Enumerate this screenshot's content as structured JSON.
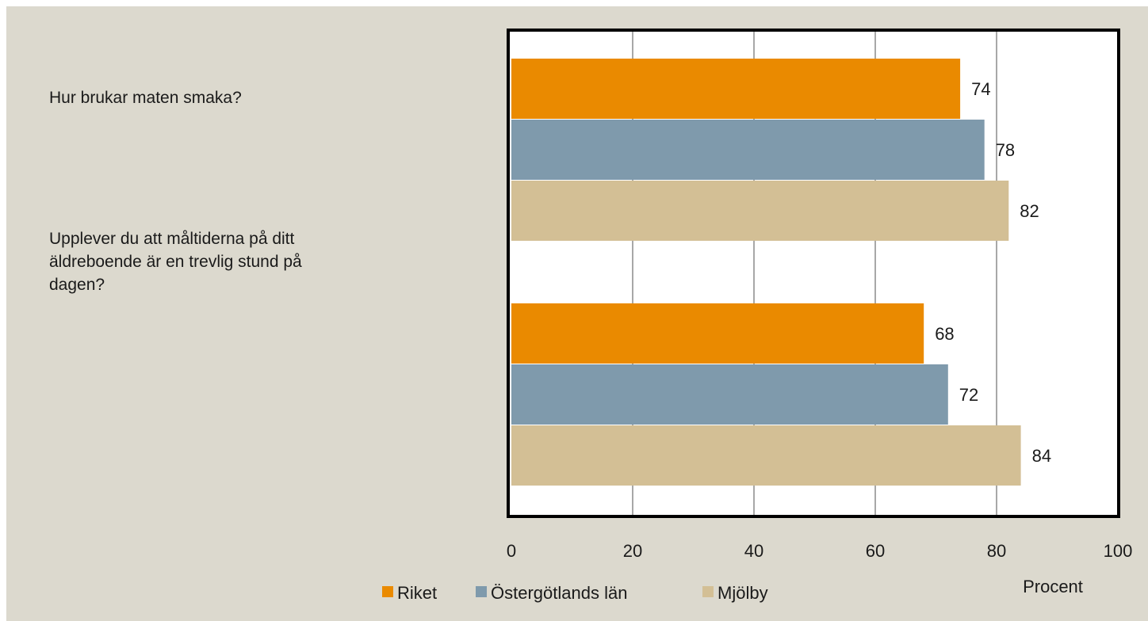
{
  "chart_data": {
    "type": "bar",
    "orientation": "horizontal",
    "categories": [
      "Hur brukar maten smaka?",
      "Upplever du att måltiderna på ditt äldreboende är en trevlig stund på dagen?"
    ],
    "category_lines": [
      [
        "Hur brukar maten smaka?"
      ],
      [
        "Upplever du att måltiderna på ditt",
        "äldreboende är en trevlig stund på",
        "dagen?"
      ]
    ],
    "series": [
      {
        "name": "Riket",
        "color": "#ea8a00",
        "values": [
          74,
          68
        ]
      },
      {
        "name": "Östergötlands län",
        "color": "#7f9aac",
        "values": [
          78,
          72
        ]
      },
      {
        "name": "Mjölby",
        "color": "#d3bf95",
        "values": [
          82,
          84
        ]
      }
    ],
    "xlabel": "Procent",
    "xlim": [
      0,
      100
    ],
    "xticks": [
      "0",
      "20",
      "40",
      "60",
      "80",
      "100"
    ],
    "grid": "vertical",
    "legend": "bottom",
    "background": "#dcd9ce",
    "plot_background": "#ffffff"
  }
}
